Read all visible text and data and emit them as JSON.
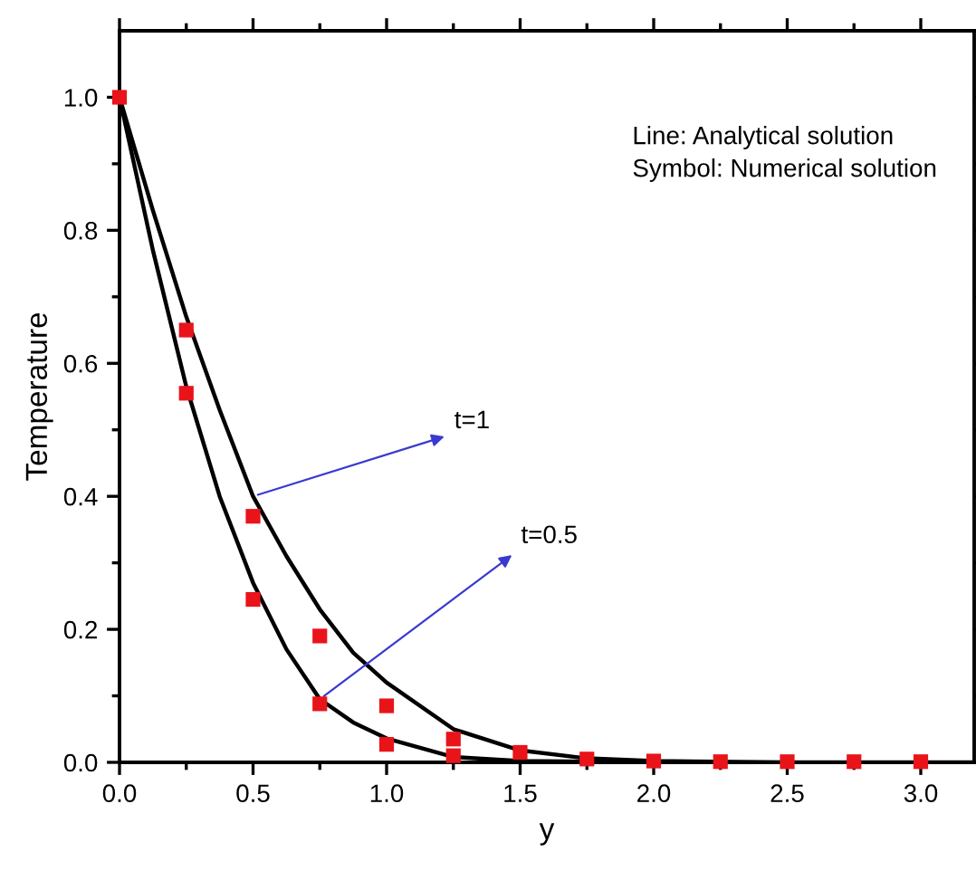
{
  "chart_data": {
    "type": "scatter",
    "xlabel": "y",
    "ylabel": "Temperature",
    "xlim": [
      0,
      3.2
    ],
    "ylim": [
      0,
      1.1
    ],
    "xticks": [
      {
        "value": 0,
        "label": "0.0"
      },
      0.5,
      {
        "value": 1,
        "label": "1.0"
      },
      1.5,
      {
        "value": 2,
        "label": "2.0"
      },
      2.5,
      {
        "value": 3,
        "label": "3.0"
      }
    ],
    "yticks": [
      {
        "value": 0,
        "label": "0.0"
      },
      0.2,
      0.4,
      0.6,
      0.8,
      {
        "value": 1,
        "label": "1.0"
      }
    ],
    "grid": false,
    "legend": false,
    "marker": "square",
    "x": [
      0,
      0.25,
      0.5,
      0.75,
      1.0,
      1.25,
      1.5,
      1.75,
      2.0,
      2.25,
      2.5,
      2.75,
      3.0
    ],
    "series": [
      {
        "color": "#e8141a",
        "values": [
          1,
          0.65,
          0.37,
          0.19,
          0.085,
          0.035,
          0.015,
          0.005,
          0.002,
          0.001,
          0.001,
          0.001,
          0.001
        ]
      },
      {
        "color": "#e8141a",
        "values": [
          null,
          0.555,
          0.245,
          0.088,
          0.027,
          0.01,
          null,
          null,
          null,
          null,
          null,
          null,
          null
        ]
      },
      {
        "type": "line",
        "color": "#000000",
        "marker": "none",
        "x": [
          0,
          0.125,
          0.25,
          0.375,
          0.5,
          0.625,
          0.75,
          0.875,
          1.0,
          1.25,
          1.5,
          1.75,
          2.0,
          2.5,
          3.2
        ],
        "values": [
          1,
          0.83,
          0.67,
          0.53,
          0.4,
          0.31,
          0.23,
          0.165,
          0.12,
          0.05,
          0.018,
          0.006,
          0.002,
          0,
          0
        ]
      },
      {
        "type": "line",
        "color": "#000000",
        "marker": "none",
        "x": [
          0,
          0.125,
          0.25,
          0.375,
          0.5,
          0.625,
          0.75,
          0.875,
          1.0,
          1.25,
          1.5,
          2.0
        ],
        "values": [
          1,
          0.77,
          0.565,
          0.4,
          0.27,
          0.17,
          0.095,
          0.06,
          0.036,
          0.008,
          0.002,
          0
        ]
      }
    ],
    "annotations": [
      {
        "text": "t=1",
        "x": 0.5,
        "y": 0.4
      },
      {
        "text": "t=0.5",
        "x": 0.75,
        "y": 0.095
      },
      "Line: Analytical solution\nSymbol: Numerical solution"
    ]
  }
}
